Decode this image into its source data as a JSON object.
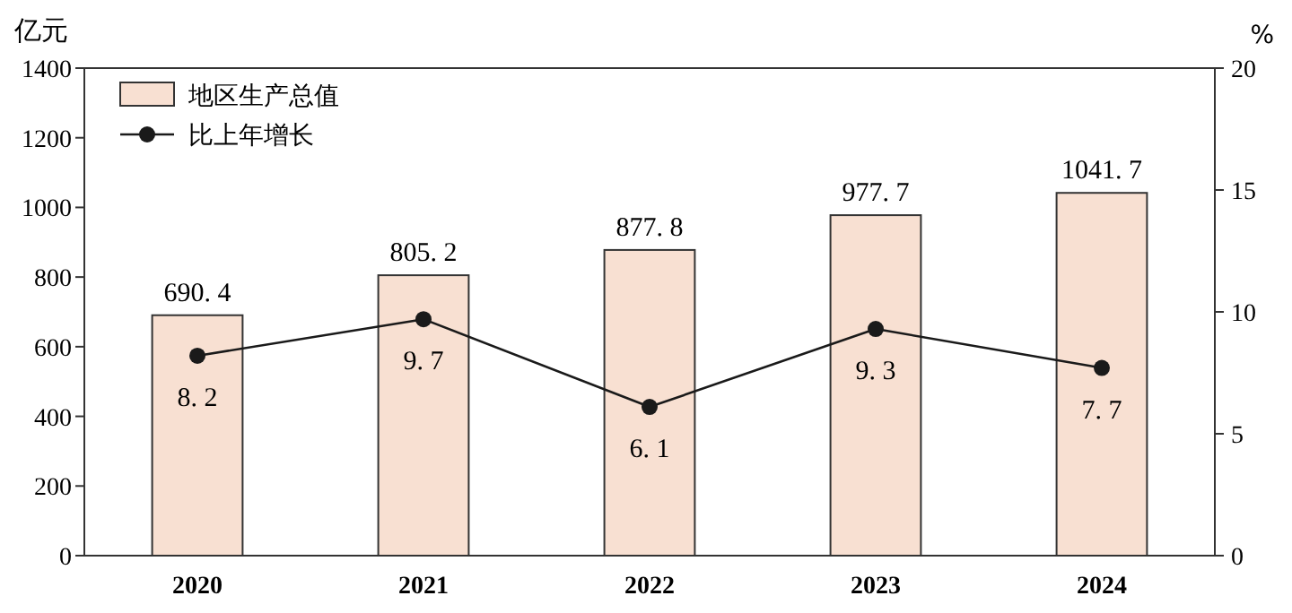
{
  "chart_data": {
    "type": "bar",
    "ylabel": "亿元",
    "y2label": "%",
    "categories": [
      "2020",
      "2021",
      "2022",
      "2023",
      "2024"
    ],
    "series": [
      {
        "name": "地区生产总值",
        "color": "#f8e0d2",
        "values": [
          690.4,
          805.2,
          877.8,
          977.7,
          1041.7
        ]
      },
      {
        "name": "比上年增长",
        "type": "line",
        "axis": "y2",
        "color": "#1a1a1a",
        "values": [
          8.2,
          9.7,
          6.1,
          9.3,
          7.7
        ]
      }
    ],
    "ylim": [
      0,
      1400
    ],
    "yticks": [
      0,
      200,
      400,
      600,
      800,
      1000,
      1200,
      1400
    ],
    "y2lim": [
      0,
      20
    ],
    "y2ticks": [
      0,
      5,
      10,
      15,
      20
    ],
    "data_labels": true,
    "legend": "top left",
    "marker": "circle",
    "line_style": "solid"
  }
}
